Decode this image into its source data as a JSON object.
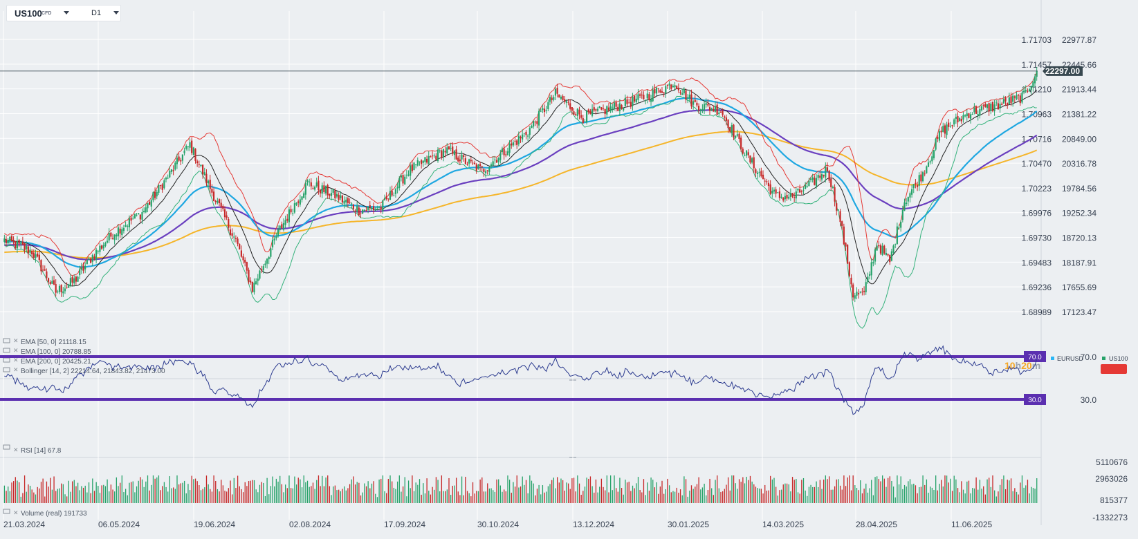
{
  "toolbar": {
    "symbol": "US100",
    "symbol_sub": "CFD",
    "timeframe": "D1"
  },
  "countdown": {
    "hours": "10",
    "h": "h",
    "minutes": "20",
    "m": "m"
  },
  "right_legend": {
    "item1": "EURUSD",
    "item2": "US100"
  },
  "price_tag": "22297.00",
  "colors": {
    "up": "#26a269",
    "down": "#c62828",
    "ema50": "#1ea7e1",
    "ema100": "#6a3fbf",
    "ema200": "#f5b52a",
    "bb_upper": "#e53935",
    "bb_mid": "#222222",
    "bb_lower": "#34b27b",
    "rsi_line": "#2b3a8f",
    "rsi_level": "#5b2fb0"
  },
  "indicator_legend": [
    {
      "name": "EMA",
      "params": "[50,  0]",
      "value": "21118.15"
    },
    {
      "name": "EMA",
      "params": "[100,  0]",
      "value": "20788.85"
    },
    {
      "name": "EMA",
      "params": "[200,  0]",
      "value": "20425.21"
    },
    {
      "name": "Bollinger",
      "params": "[14,  2]",
      "value": "22214.64,   21843.82,   21473.00"
    }
  ],
  "rsi_legend": {
    "name": "RSI",
    "params": "[14]",
    "value": "67.8"
  },
  "volume_legend": {
    "name": "Volume",
    "params": "(real)",
    "value": "191733"
  },
  "chart_data": [
    {
      "type": "candlestick",
      "title": "US100 CFD D1",
      "x_ticks": [
        "21.03.2024",
        "06.05.2024",
        "19.06.2024",
        "02.08.2024",
        "17.09.2024",
        "30.10.2024",
        "13.12.2024",
        "30.01.2025",
        "14.03.2025",
        "28.04.2025",
        "11.06.2025"
      ],
      "y_ticks_right": [
        "22977.87",
        "22445.66",
        "21913.44",
        "21381.22",
        "20849.00",
        "20316.78",
        "19784.56",
        "19252.34",
        "18720.13",
        "18187.91",
        "17655.69",
        "17123.47"
      ],
      "y_ticks_secondary": [
        "1.71703",
        "1.71457",
        "1.71210",
        "1.70963",
        "1.70716",
        "1.70470",
        "1.70223",
        "1.69976",
        "1.69730",
        "1.69483",
        "1.69236",
        "1.68989"
      ],
      "ylim": [
        16800,
        23400
      ],
      "last_price": 22297.0,
      "close_anchors": [
        [
          0,
          18660
        ],
        [
          15,
          18420
        ],
        [
          28,
          17550
        ],
        [
          38,
          17780
        ],
        [
          48,
          18320
        ],
        [
          60,
          18840
        ],
        [
          75,
          19250
        ],
        [
          90,
          20080
        ],
        [
          101,
          20720
        ],
        [
          112,
          19780
        ],
        [
          126,
          18650
        ],
        [
          135,
          17620
        ],
        [
          150,
          18900
        ],
        [
          165,
          19890
        ],
        [
          180,
          19620
        ],
        [
          193,
          19310
        ],
        [
          205,
          19360
        ],
        [
          220,
          20150
        ],
        [
          240,
          20600
        ],
        [
          260,
          20160
        ],
        [
          285,
          21000
        ],
        [
          300,
          21800
        ],
        [
          315,
          21300
        ],
        [
          330,
          21500
        ],
        [
          348,
          21720
        ],
        [
          365,
          22050
        ],
        [
          375,
          21600
        ],
        [
          390,
          21450
        ],
        [
          405,
          20420
        ],
        [
          420,
          19600
        ],
        [
          430,
          19600
        ],
        [
          440,
          19900
        ],
        [
          448,
          20200
        ],
        [
          455,
          19100
        ],
        [
          462,
          17500
        ],
        [
          468,
          17500
        ],
        [
          475,
          18600
        ],
        [
          482,
          18200
        ],
        [
          490,
          19500
        ],
        [
          500,
          20100
        ],
        [
          510,
          21000
        ],
        [
          525,
          21400
        ],
        [
          540,
          21550
        ],
        [
          555,
          21750
        ],
        [
          562,
          22297
        ]
      ],
      "ema": [
        {
          "name": "EMA [50, 0]",
          "period": 50,
          "color": "#1ea7e1",
          "value": 21118.15
        },
        {
          "name": "EMA [100, 0]",
          "period": 100,
          "color": "#6a3fbf",
          "value": 20788.85
        },
        {
          "name": "EMA [200, 0]",
          "period": 200,
          "color": "#f5b52a",
          "value": 20425.21
        }
      ],
      "bollinger": {
        "period": 14,
        "mult": 2,
        "upper": 22214.64,
        "middle": 21843.82,
        "lower": 21473.0
      }
    },
    {
      "type": "line",
      "title": "RSI [14]",
      "last_value": 67.8,
      "levels": [
        70.0,
        30.0
      ],
      "y_ticks": [
        "70.0",
        "30.0"
      ],
      "level_labels": [
        "70.0",
        "30.0"
      ]
    },
    {
      "type": "bar",
      "title": "Volume (real)",
      "last_value": 191733,
      "y_ticks": [
        "5110676",
        "2963026",
        "815377",
        "-1332273"
      ],
      "ylim": [
        -1332273,
        5110676
      ]
    }
  ]
}
